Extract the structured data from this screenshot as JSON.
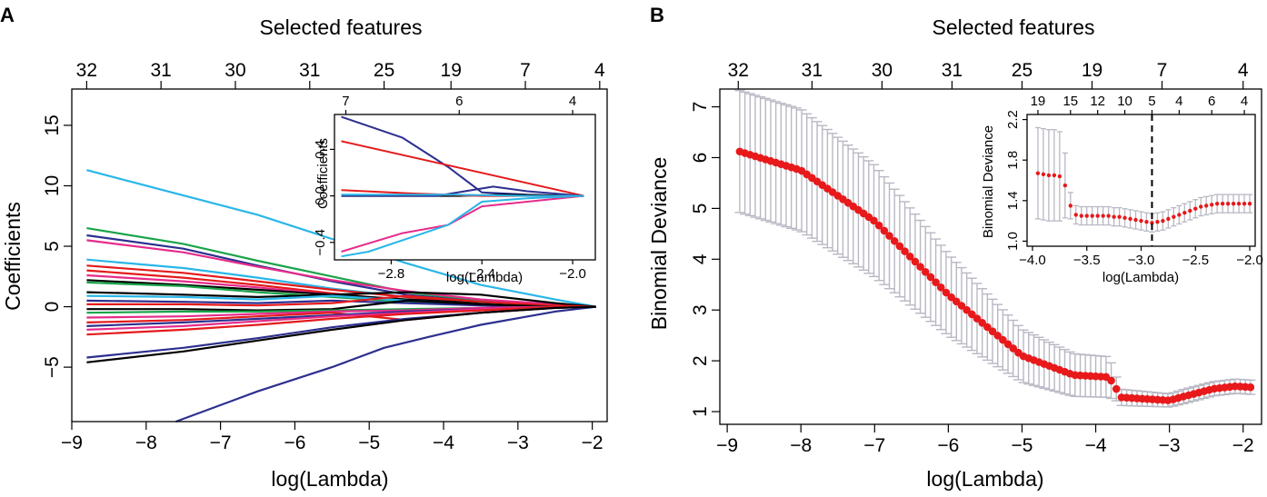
{
  "panels": {
    "a": {
      "label": "A"
    },
    "b": {
      "label": "B"
    }
  },
  "colors": {
    "axis": "#000000",
    "errorbar": "#b8b8c4",
    "point": "#e8191b",
    "dashed": "#000000",
    "lasso_palette": [
      "#000000",
      "#e41a1c",
      "#1aa44a",
      "#2c2f8f",
      "#29b6e8",
      "#e62b8a"
    ]
  },
  "chart_data": [
    {
      "id": "coef-path",
      "type": "line",
      "xlabel": "log(Lambda)",
      "ylabel": "Coefficients",
      "top_axis_title": "Selected features",
      "xlim": [
        -9,
        -1.8
      ],
      "ylim": [
        -9.5,
        18
      ],
      "x_ticks": [
        "−9",
        "−8",
        "−7",
        "−6",
        "−5",
        "−4",
        "−3",
        "−2"
      ],
      "y_ticks": [
        "15",
        "10",
        "5",
        "0",
        "−5"
      ],
      "top_ticks": [
        {
          "x": -8.8,
          "label": "32"
        },
        {
          "x": -7.8,
          "label": "31"
        },
        {
          "x": -6.8,
          "label": "30"
        },
        {
          "x": -5.8,
          "label": "31"
        },
        {
          "x": -4.8,
          "label": "25"
        },
        {
          "x": -3.9,
          "label": "19"
        },
        {
          "x": -2.9,
          "label": "7"
        },
        {
          "x": -1.9,
          "label": "4"
        }
      ],
      "series": [
        {
          "name": "cyan-top",
          "color": "#29b6e8",
          "x": [
            -8.8,
            -7.5,
            -6.5,
            -5.5,
            -4.5,
            -3.5,
            -2.5,
            -1.95
          ],
          "y": [
            11.3,
            9.2,
            7.6,
            5.6,
            3.6,
            1.8,
            0.6,
            0
          ]
        },
        {
          "name": "navy-bottom",
          "color": "#2c2f8f",
          "x": [
            -7.6,
            -6.5,
            -5.5,
            -4.8,
            -4.2,
            -3.5,
            -2.5,
            -1.95
          ],
          "y": [
            -9.5,
            -7,
            -5,
            -3.4,
            -2.5,
            -1.5,
            -0.4,
            0
          ]
        },
        {
          "name": "green-1",
          "color": "#1aa44a",
          "x": [
            -8.8,
            -7.5,
            -6.5,
            -5.5,
            -4.5,
            -3.5,
            -2.5,
            -1.95
          ],
          "y": [
            6.5,
            5.2,
            3.8,
            2.5,
            1.2,
            0.5,
            0.1,
            0
          ]
        },
        {
          "name": "navy-2",
          "color": "#2c2f8f",
          "x": [
            -8.8,
            -7.5,
            -6.5,
            -5.5,
            -4.5,
            -3.5,
            -2.5,
            -1.95
          ],
          "y": [
            5.9,
            4.8,
            3.4,
            2.1,
            1.0,
            0.4,
            0.1,
            0
          ]
        },
        {
          "name": "magenta-1",
          "color": "#e62b8a",
          "x": [
            -8.8,
            -7.5,
            -6.5,
            -5.5,
            -4.5,
            -3.5,
            -2.5,
            -1.95
          ],
          "y": [
            5.5,
            4.5,
            3.3,
            2.2,
            1.3,
            0.6,
            0.2,
            0
          ]
        },
        {
          "name": "cyan-2",
          "color": "#29b6e8",
          "x": [
            -8.8,
            -7.5,
            -6.5,
            -5.5,
            -4.5,
            -3.5,
            -2.5,
            -1.95
          ],
          "y": [
            3.9,
            3.2,
            2.4,
            1.5,
            0.8,
            0.3,
            0.05,
            0
          ]
        },
        {
          "name": "red-1",
          "color": "#e41a1c",
          "x": [
            -8.8,
            -7.5,
            -6.5,
            -5.5,
            -4.5,
            -3.5,
            -2.5,
            -1.95
          ],
          "y": [
            3.4,
            2.8,
            2.1,
            1.4,
            0.8,
            0.3,
            0.05,
            0
          ]
        },
        {
          "name": "red-2",
          "color": "#e41a1c",
          "x": [
            -8.8,
            -7.5,
            -6.5,
            -5.5,
            -4.5,
            -3.5,
            -2.5,
            -1.95
          ],
          "y": [
            3.0,
            2.4,
            1.8,
            1.1,
            0.5,
            0.2,
            0,
            0
          ]
        },
        {
          "name": "magenta-2",
          "color": "#e62b8a",
          "x": [
            -8.8,
            -7.5,
            -6.5,
            -5.5,
            -4.5,
            -3.5,
            -2.5,
            -1.95
          ],
          "y": [
            2.6,
            2.1,
            1.6,
            1.0,
            0.6,
            0.3,
            0.05,
            0
          ]
        },
        {
          "name": "black-1",
          "color": "#000000",
          "x": [
            -8.8,
            -7.5,
            -6.5,
            -5.5,
            -4.5,
            -3.5,
            -2.5,
            -1.95
          ],
          "y": [
            2.2,
            1.8,
            1.4,
            1.0,
            0.6,
            0.3,
            0.05,
            0
          ]
        },
        {
          "name": "green-2",
          "color": "#1aa44a",
          "x": [
            -8.8,
            -7.5,
            -6.5,
            -5.5,
            -4.5,
            -3.5,
            -2.5,
            -1.95
          ],
          "y": [
            2.0,
            1.7,
            1.2,
            0.8,
            0.4,
            0.2,
            0,
            0
          ]
        },
        {
          "name": "black-2",
          "color": "#000000",
          "x": [
            -8.8,
            -7.5,
            -6.5,
            -5.5,
            -4.5,
            -3.5,
            -2.5,
            -1.95
          ],
          "y": [
            1.2,
            1.0,
            0.8,
            1.0,
            1.2,
            1.0,
            0.3,
            0
          ]
        },
        {
          "name": "cyan-3",
          "color": "#29b6e8",
          "x": [
            -8.8,
            -7.5,
            -6.5,
            -5.5,
            -4.5,
            -3.5,
            -2.5,
            -1.95
          ],
          "y": [
            0.9,
            0.8,
            0.6,
            0.9,
            0.5,
            0.2,
            0,
            0
          ]
        },
        {
          "name": "navy-3",
          "color": "#2c2f8f",
          "x": [
            -8.8,
            -7.5,
            -6.5,
            -5.5,
            -4.5,
            -3.5,
            -2.5,
            -1.95
          ],
          "y": [
            0.5,
            0.4,
            0.3,
            0.5,
            0.3,
            0.1,
            0,
            0
          ]
        },
        {
          "name": "red-3",
          "color": "#e41a1c",
          "x": [
            -8.8,
            -7.5,
            -6.5,
            -5.5,
            -4.5,
            -3.5,
            -2.5,
            -1.95
          ],
          "y": [
            0.2,
            0.2,
            0.1,
            0.3,
            0.9,
            0.4,
            0.1,
            0
          ]
        },
        {
          "name": "black-3",
          "color": "#000000",
          "x": [
            -8.8,
            -7.5,
            -6.5,
            -5.5,
            -4.5,
            -3.5,
            -2.5,
            -1.95
          ],
          "y": [
            -0.2,
            -0.2,
            -0.3,
            -0.2,
            0.5,
            0.2,
            0,
            0
          ]
        },
        {
          "name": "green-3",
          "color": "#1aa44a",
          "x": [
            -8.8,
            -7.5,
            -6.5,
            -5.5,
            -4.5,
            -3.5,
            -2.5,
            -1.95
          ],
          "y": [
            -0.5,
            -0.4,
            -0.4,
            -0.3,
            -0.2,
            -0.1,
            0,
            0
          ]
        },
        {
          "name": "magenta-3",
          "color": "#e62b8a",
          "x": [
            -8.8,
            -7.5,
            -6.5,
            -5.5,
            -4.5,
            -3.5,
            -2.5,
            -1.95
          ],
          "y": [
            -0.9,
            -0.8,
            -0.6,
            -0.4,
            -0.3,
            -0.1,
            0,
            0
          ]
        },
        {
          "name": "red-4",
          "color": "#e41a1c",
          "x": [
            -8.8,
            -7.5,
            -6.5,
            -5.5,
            -4.5,
            -3.5,
            -2.5,
            -1.95
          ],
          "y": [
            -1.3,
            -1.1,
            -0.8,
            -0.5,
            -1.1,
            -0.5,
            -0.1,
            0
          ]
        },
        {
          "name": "navy-4",
          "color": "#2c2f8f",
          "x": [
            -8.8,
            -7.5,
            -6.5,
            -5.5,
            -4.5,
            -3.5,
            -2.5,
            -1.95
          ],
          "y": [
            -1.6,
            -1.3,
            -1.0,
            -0.7,
            -0.4,
            -0.2,
            0,
            0
          ]
        },
        {
          "name": "magenta-4",
          "color": "#e62b8a",
          "x": [
            -8.8,
            -7.5,
            -6.5,
            -5.5,
            -4.5,
            -3.5,
            -2.5,
            -1.95
          ],
          "y": [
            -1.9,
            -1.6,
            -1.2,
            -0.8,
            -0.5,
            -0.2,
            0,
            0
          ]
        },
        {
          "name": "red-5",
          "color": "#e41a1c",
          "x": [
            -8.8,
            -7.5,
            -6.5,
            -5.5,
            -4.5,
            -3.5,
            -2.5,
            -1.95
          ],
          "y": [
            -2.3,
            -1.9,
            -1.5,
            -1.0,
            -0.6,
            -0.3,
            0,
            0
          ]
        },
        {
          "name": "navy-5",
          "color": "#2c2f8f",
          "x": [
            -8.8,
            -7.5,
            -6.5,
            -5.5,
            -4.5,
            -3.5,
            -2.5,
            -1.95
          ],
          "y": [
            -4.2,
            -3.4,
            -2.6,
            -1.7,
            -1.0,
            -0.5,
            -0.1,
            0
          ]
        },
        {
          "name": "black-4",
          "color": "#000000",
          "x": [
            -8.8,
            -7.5,
            -6.5,
            -5.5,
            -4.5,
            -3.5,
            -2.5,
            -1.95
          ],
          "y": [
            -4.6,
            -3.7,
            -2.8,
            -1.9,
            -1.1,
            -0.5,
            -0.1,
            0
          ]
        }
      ]
    },
    {
      "id": "coef-inset",
      "type": "line",
      "xlabel": "log(Lambda)",
      "ylabel": "Coefficients",
      "xlim": [
        -3.05,
        -1.9
      ],
      "ylim": [
        -0.55,
        0.7
      ],
      "x_ticks": [
        "−2.8",
        "−2.4",
        "−2.0"
      ],
      "y_ticks": [
        "0.4",
        "0.0",
        "−0.4"
      ],
      "top_ticks": [
        {
          "x": -3.0,
          "label": "7"
        },
        {
          "x": -2.5,
          "label": "6"
        },
        {
          "x": -2.0,
          "label": "4"
        }
      ],
      "series": [
        {
          "name": "navy-inset",
          "color": "#2c2f8f",
          "x": [
            -3.02,
            -2.75,
            -2.55,
            -2.4,
            -2.2,
            -1.95
          ],
          "y": [
            0.68,
            0.5,
            0.25,
            0.03,
            0.01,
            0
          ]
        },
        {
          "name": "red-inset",
          "color": "#e41a1c",
          "x": [
            -3.02,
            -1.95
          ],
          "y": [
            0.47,
            0
          ]
        },
        {
          "name": "magenta-inset",
          "color": "#e62b8a",
          "x": [
            -3.02,
            -2.75,
            -2.55,
            -2.4,
            -1.95
          ],
          "y": [
            -0.48,
            -0.32,
            -0.25,
            -0.09,
            0
          ]
        },
        {
          "name": "cyan-inset",
          "color": "#29b6e8",
          "x": [
            -3.02,
            -2.9,
            -2.55,
            -2.4,
            -2.2,
            -1.95
          ],
          "y": [
            -0.52,
            -0.48,
            -0.25,
            -0.05,
            -0.02,
            0
          ]
        },
        {
          "name": "black-inset",
          "color": "#000000",
          "x": [
            -3.02,
            -2.5,
            -2.3,
            -1.95
          ],
          "y": [
            0.0,
            0.0,
            0.01,
            0
          ]
        },
        {
          "name": "navy-inset-2",
          "color": "#2c2f8f",
          "x": [
            -3.02,
            -2.6,
            -2.35,
            -2.2,
            -1.95
          ],
          "y": [
            0.0,
            0.0,
            0.08,
            0.04,
            0
          ]
        },
        {
          "name": "red-inset-2",
          "color": "#e41a1c",
          "x": [
            -3.02,
            -2.7,
            -2.4,
            -1.95
          ],
          "y": [
            0.05,
            0.02,
            0.0,
            0
          ]
        },
        {
          "name": "cyan-inset-2",
          "color": "#29b6e8",
          "x": [
            -3.02,
            -2.5,
            -2.2,
            -1.95
          ],
          "y": [
            0.01,
            0.01,
            0.0,
            0
          ]
        }
      ]
    },
    {
      "id": "cv-deviance",
      "type": "scatter",
      "xlabel": "log(Lambda)",
      "ylabel": "Binomial Deviance",
      "top_axis_title": "Selected features",
      "xlim": [
        -9.1,
        -1.75
      ],
      "ylim": [
        0.75,
        7.35
      ],
      "x_ticks": [
        "−9",
        "−8",
        "−7",
        "−6",
        "−5",
        "−4",
        "−3",
        "−2"
      ],
      "y_ticks": [
        "1",
        "2",
        "3",
        "4",
        "5",
        "6",
        "7"
      ],
      "top_ticks": [
        {
          "x": -8.85,
          "label": "32"
        },
        {
          "x": -7.85,
          "label": "31"
        },
        {
          "x": -6.9,
          "label": "30"
        },
        {
          "x": -5.95,
          "label": "31"
        },
        {
          "x": -5.0,
          "label": "25"
        },
        {
          "x": -4.05,
          "label": "19"
        },
        {
          "x": -3.1,
          "label": "7"
        },
        {
          "x": -2.0,
          "label": "4"
        }
      ],
      "cv_curve": {
        "x_start": -8.83,
        "x_end": -1.9,
        "knots_x": [
          -8.83,
          -8.0,
          -7.0,
          -6.0,
          -5.0,
          -4.3,
          -3.82,
          -3.7,
          -3.65,
          -3.0,
          -2.8,
          -2.4,
          -2.1,
          -1.9
        ],
        "knots_y": [
          6.12,
          5.75,
          4.75,
          3.3,
          2.1,
          1.72,
          1.68,
          1.4,
          1.28,
          1.22,
          1.3,
          1.45,
          1.5,
          1.48
        ],
        "err_knots_x": [
          -8.83,
          -8.0,
          -7.0,
          -6.0,
          -5.0,
          -4.3,
          -3.82,
          -3.7,
          -3.65,
          -3.0,
          -2.8,
          -2.4,
          -2.1,
          -1.9
        ],
        "err_knots_y": [
          1.2,
          1.2,
          1.1,
          0.8,
          0.52,
          0.42,
          0.4,
          0.2,
          0.16,
          0.13,
          0.14,
          0.14,
          0.14,
          0.14
        ]
      }
    },
    {
      "id": "cv-inset",
      "type": "scatter",
      "xlabel": "log(Lambda)",
      "ylabel": "Binomial Deviance",
      "xlim": [
        -4.05,
        -1.95
      ],
      "ylim": [
        0.95,
        2.25
      ],
      "x_ticks": [
        "−4.0",
        "−3.5",
        "−3.0",
        "−2.5",
        "−2.0"
      ],
      "y_ticks": [
        "1.0",
        "1.4",
        "1.8",
        "2.2"
      ],
      "top_ticks": [
        {
          "x": -3.95,
          "label": "19"
        },
        {
          "x": -3.65,
          "label": "15"
        },
        {
          "x": -3.4,
          "label": "12"
        },
        {
          "x": -3.15,
          "label": "10"
        },
        {
          "x": -2.9,
          "label": "5"
        },
        {
          "x": -2.65,
          "label": "4"
        },
        {
          "x": -2.35,
          "label": "6"
        },
        {
          "x": -2.05,
          "label": "4"
        }
      ],
      "lambda_min": -2.9,
      "points_x": [
        -3.95,
        -3.9,
        -3.85,
        -3.8,
        -3.75,
        -3.7,
        -3.65,
        -3.6,
        -3.55,
        -3.5,
        -3.45,
        -3.4,
        -3.35,
        -3.3,
        -3.25,
        -3.2,
        -3.15,
        -3.1,
        -3.05,
        -3.0,
        -2.95,
        -2.9,
        -2.85,
        -2.8,
        -2.75,
        -2.7,
        -2.65,
        -2.6,
        -2.55,
        -2.5,
        -2.45,
        -2.4,
        -2.35,
        -2.3,
        -2.25,
        -2.2,
        -2.15,
        -2.1,
        -2.05,
        -2.0
      ],
      "points_y": [
        1.67,
        1.66,
        1.65,
        1.65,
        1.64,
        1.55,
        1.35,
        1.26,
        1.25,
        1.25,
        1.25,
        1.25,
        1.25,
        1.25,
        1.24,
        1.24,
        1.23,
        1.22,
        1.21,
        1.2,
        1.19,
        1.18,
        1.19,
        1.2,
        1.22,
        1.24,
        1.26,
        1.28,
        1.3,
        1.32,
        1.34,
        1.35,
        1.36,
        1.37,
        1.37,
        1.37,
        1.37,
        1.37,
        1.37,
        1.37
      ],
      "err_y": [
        0.45,
        0.45,
        0.45,
        0.45,
        0.44,
        0.32,
        0.13,
        0.09,
        0.09,
        0.09,
        0.09,
        0.09,
        0.09,
        0.09,
        0.09,
        0.09,
        0.09,
        0.09,
        0.09,
        0.09,
        0.09,
        0.09,
        0.09,
        0.09,
        0.09,
        0.09,
        0.09,
        0.09,
        0.09,
        0.09,
        0.09,
        0.09,
        0.09,
        0.09,
        0.09,
        0.09,
        0.09,
        0.09,
        0.09,
        0.09
      ]
    }
  ]
}
